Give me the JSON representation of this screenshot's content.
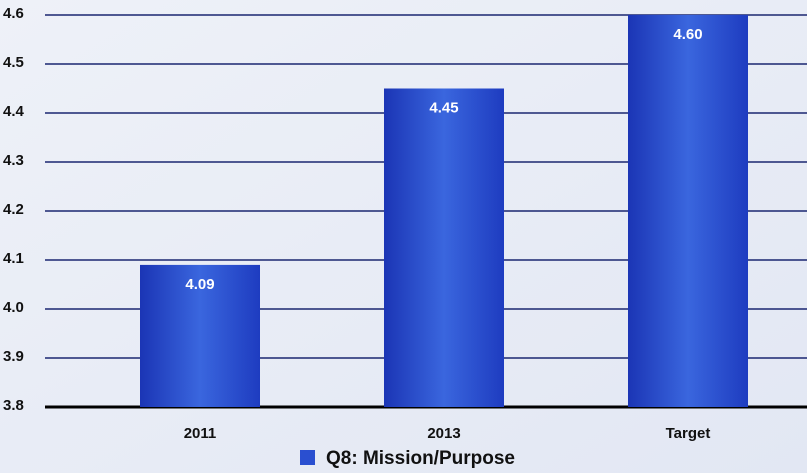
{
  "chart_data": {
    "type": "bar",
    "categories": [
      "2011",
      "2013",
      "Target"
    ],
    "series": [
      {
        "name": "Q8: Mission/Purpose",
        "color": "#2a4fd0",
        "values": [
          4.09,
          4.45,
          4.6
        ],
        "value_labels": [
          "4.09",
          "4.45",
          "4.60"
        ]
      }
    ],
    "ylim": [
      3.8,
      4.6
    ],
    "yticks": [
      3.8,
      3.9,
      {
        "value": 4,
        "label": "4.0"
      },
      4.1,
      4.2,
      4.3,
      4.4,
      4.5,
      4.6
    ],
    "grid": true,
    "legend": "bottom"
  }
}
